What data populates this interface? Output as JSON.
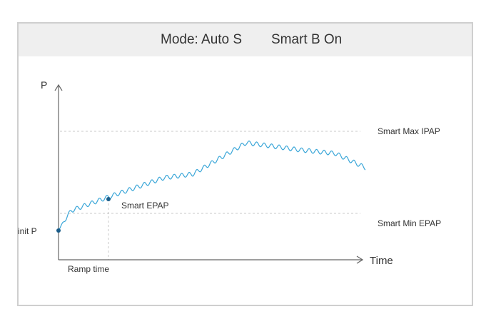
{
  "header": {
    "mode_label": "Mode: Auto S",
    "smart_b_label": "Smart B On"
  },
  "colors": {
    "waveform": "#3aa6d8",
    "marker": "#1a5d8a",
    "axis": "#666666",
    "reference_line": "#c8c8c8",
    "header_bg": "#efefef",
    "border": "#cfcfcf"
  },
  "diagram": {
    "y_axis_label": "P",
    "x_axis_label": "Time",
    "max_ipap_label": "Smart Max IPAP",
    "min_epap_label": "Smart Min EPAP",
    "init_p_label": "init P",
    "smart_epap_label": "Smart EPAP",
    "ramp_time_label": "Ramp time"
  }
}
